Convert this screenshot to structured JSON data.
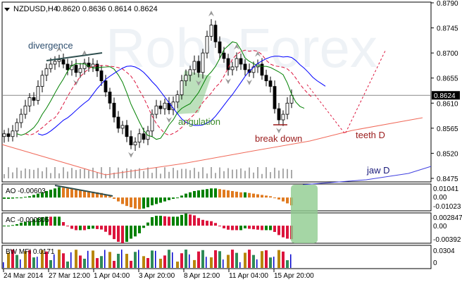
{
  "header": {
    "symbol": "NZDUSD,H4",
    "ohlc": "0.8620 0.8636 0.8614 0.8624"
  },
  "watermark": "RoboForex",
  "colors": {
    "up_ao": "#008000",
    "down_ao": "#e07a1f",
    "ac_down": "#dc143c",
    "lips": "#008000",
    "teeth": "#dc143c",
    "jaw": "#0000ff",
    "annotation_fill": "#8fcc8f"
  },
  "chart_data": [
    {
      "type": "candlestick",
      "title": "NZDUSD,H4",
      "ylim": [
        0.8475,
        0.879
      ],
      "y_ticks": [
        "0.8790",
        "0.8745",
        "0.8700",
        "0.8655",
        "0.8610",
        "0.8565",
        "0.8520",
        "0.8475"
      ],
      "x_ticks": [
        "24 Mar 2014",
        "27 Mar 12:00",
        "1 Apr 04:00",
        "3 Apr 20:00",
        "8 Apr 12:00",
        "11 Apr 04:00",
        "15 Apr 20:00"
      ],
      "last_price": "0.8624",
      "closes": [
        0.8555,
        0.855,
        0.856,
        0.8575,
        0.859,
        0.8605,
        0.862,
        0.8615,
        0.864,
        0.866,
        0.8672,
        0.868,
        0.8685,
        0.8688,
        0.868,
        0.867,
        0.8678,
        0.8665,
        0.8672,
        0.8682,
        0.8675,
        0.868,
        0.8668,
        0.865,
        0.863,
        0.861,
        0.8585,
        0.8565,
        0.857,
        0.855,
        0.8535,
        0.854,
        0.8555,
        0.8545,
        0.856,
        0.859,
        0.8605,
        0.86,
        0.861,
        0.8598,
        0.8612,
        0.8625,
        0.865,
        0.866,
        0.867,
        0.8685,
        0.8665,
        0.87,
        0.873,
        0.875,
        0.872,
        0.87,
        0.869,
        0.867,
        0.8675,
        0.869,
        0.868,
        0.867,
        0.8665,
        0.8675,
        0.868,
        0.866,
        0.865,
        0.864,
        0.86,
        0.858,
        0.859,
        0.861,
        0.8624
      ],
      "annotations": [
        "divergence",
        "angulation",
        "break down",
        "teeth D",
        "jaw D"
      ]
    },
    {
      "type": "bar",
      "title": "AO -0.00603",
      "y_ticks": [
        "0.01041",
        "0.00",
        "-0.01023"
      ],
      "ylim": [
        -0.01023,
        0.01041
      ],
      "values": [
        -0.001,
        -0.001,
        -0.0008,
        -0.0005,
        0,
        0.0005,
        0.001,
        0.002,
        0.003,
        0.004,
        0.005,
        0.006,
        0.007,
        0.008,
        0.0075,
        0.007,
        0.0065,
        0.006,
        0.0055,
        0.005,
        0.0048,
        0.0045,
        0.004,
        0.0035,
        0.0025,
        0.001,
        -0.001,
        -0.003,
        -0.005,
        -0.0065,
        -0.0075,
        -0.0085,
        -0.009,
        -0.0085,
        -0.0075,
        -0.006,
        -0.005,
        -0.004,
        -0.003,
        -0.002,
        -0.001,
        0,
        0.0015,
        0.003,
        0.004,
        0.005,
        0.0055,
        0.006,
        0.0065,
        0.007,
        0.007,
        0.0065,
        0.006,
        0.0055,
        0.005,
        0.0045,
        0.004,
        0.004,
        0.0035,
        0.003,
        0.0025,
        0.002,
        0.0015,
        0.001,
        0,
        -0.0015,
        -0.003,
        -0.0045,
        -0.00603
      ]
    },
    {
      "type": "bar",
      "title": "AC -0.000305",
      "y_ticks": [
        "0.002847",
        "0.00",
        "-0.00392"
      ],
      "ylim": [
        -0.00392,
        0.002847
      ]
    },
    {
      "type": "bar",
      "title": "BW MFI 0.0171",
      "y_ticks": [
        "0.0304",
        "0"
      ],
      "ylim": [
        0,
        0.0304
      ]
    }
  ]
}
